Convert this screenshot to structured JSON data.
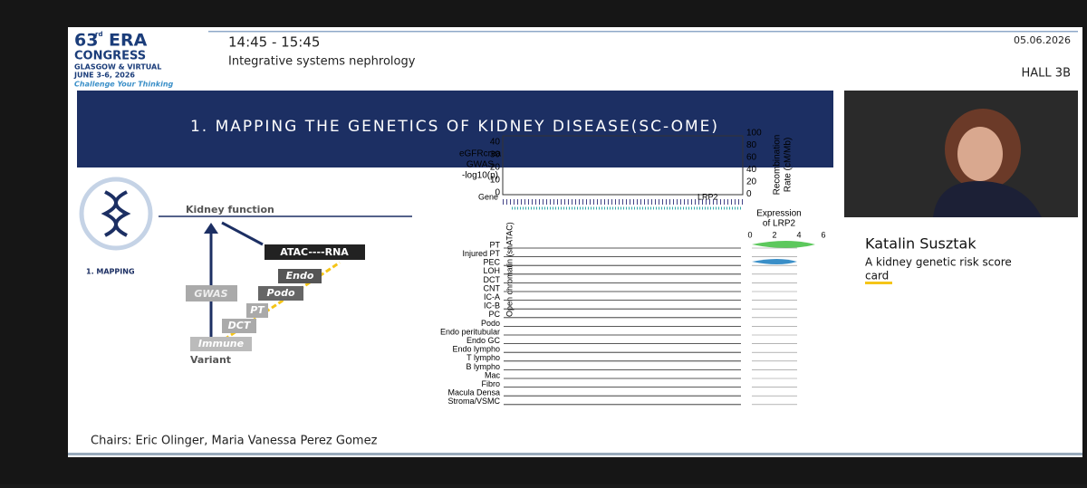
{
  "header": {
    "logo": {
      "edition": "63",
      "edition_suffix": "rd",
      "name": "ERA",
      "line2": "CONGRESS",
      "line3": "GLASGOW & VIRTUAL",
      "line4": "JUNE 3-6, 2026",
      "tagline": "Challenge Your Thinking"
    },
    "time": "14:45 - 15:45",
    "session": "Integrative systems nephrology",
    "date": "05.06.2026",
    "hall": "HALL 3B"
  },
  "slide": {
    "title": "1. MAPPING THE GENETICS OF KIDNEY DISEASE(SC-OME)",
    "diagram": {
      "section": "1. MAPPING",
      "kidney_function": "Kidney function",
      "variant": "Variant",
      "atac_rna": "ATAC----RNA",
      "steps": [
        "Endo",
        "Podo",
        "PT",
        "DCT",
        "Immune"
      ],
      "gwas": "GWAS"
    },
    "figure": {
      "gwas_label": [
        "eGFRcrea",
        "GWAS",
        "-log10(p)"
      ],
      "left_ticks": [
        "40",
        "30",
        "20",
        "10",
        "0"
      ],
      "right_ticks": [
        "100",
        "80",
        "60",
        "40",
        "20",
        "0"
      ],
      "right_label": [
        "Recombination",
        "Rate (cM/Mb)"
      ],
      "gene_label": "Gene",
      "gene": "LRP2",
      "y_label": "Open chromatin (snATAC)",
      "expression_label": [
        "Expression",
        "of LRP2"
      ],
      "expression_ticks": [
        "0",
        "2",
        "4",
        "6"
      ],
      "tracks": [
        "PT",
        "Injured PT",
        "PEC",
        "LOH",
        "DCT",
        "CNT",
        "IC-A",
        "IC-B",
        "PC",
        "Podo",
        "Endo peritubular",
        "Endo GC",
        "Endo lympho",
        "T lympho",
        "B lympho",
        "Mac",
        "Fibro",
        "Macula Densa",
        "Stroma/VSMC"
      ]
    }
  },
  "speaker": {
    "name": "Katalin Susztak",
    "talk": [
      "A kidney genetic risk score",
      "card"
    ]
  },
  "chairs": "Chairs: Eric Olinger, Maria Vanessa Perez Gomez"
}
